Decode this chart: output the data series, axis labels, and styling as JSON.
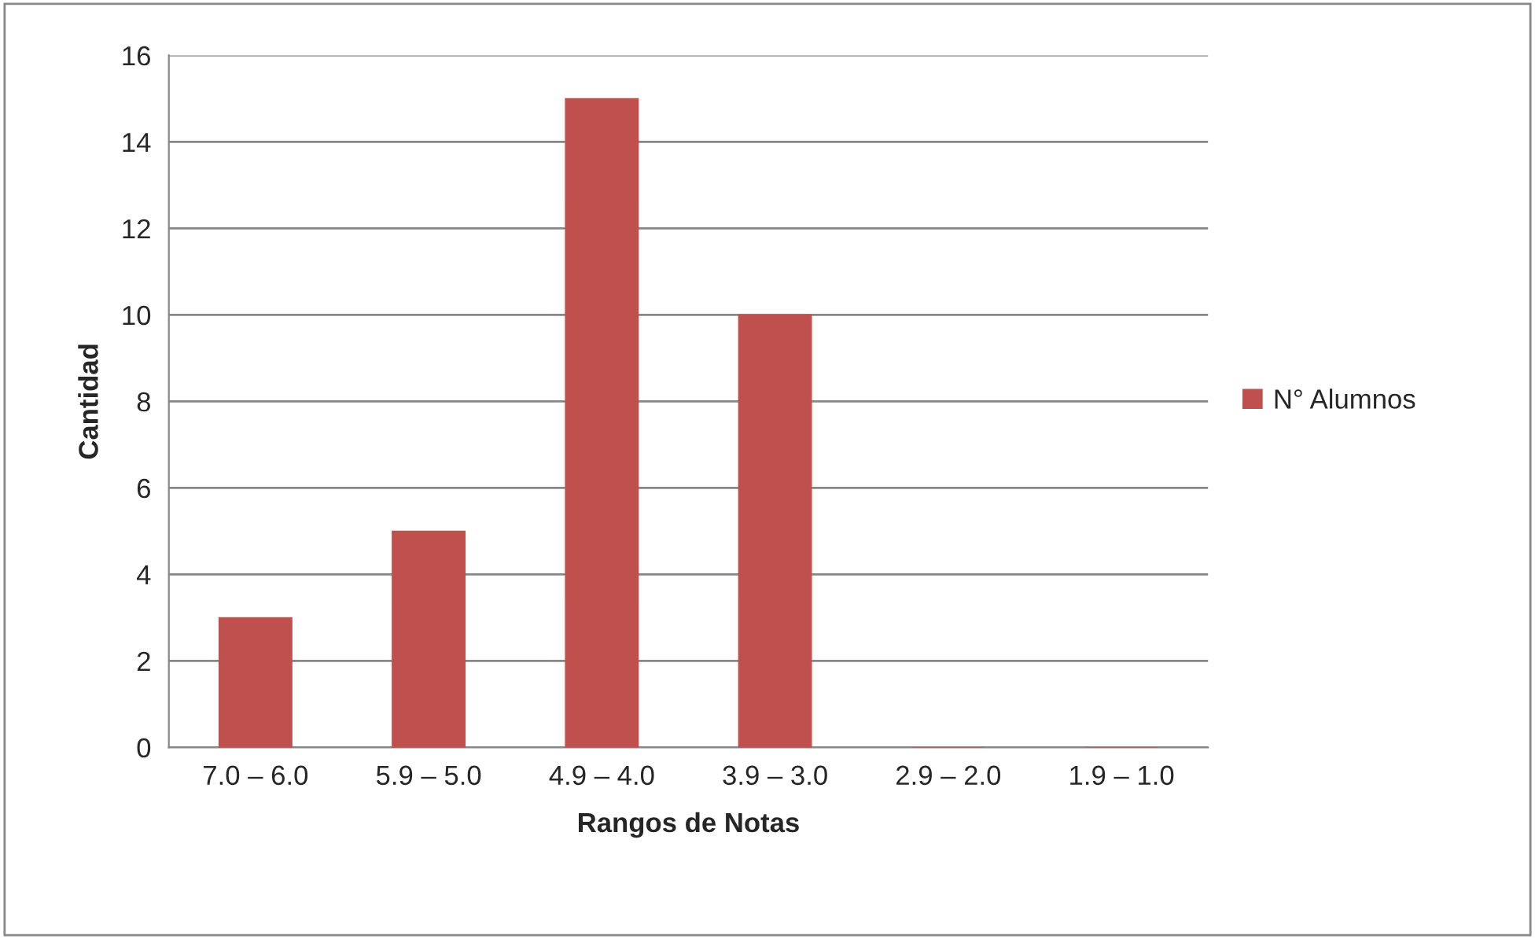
{
  "chart_data": {
    "type": "bar",
    "xlabel": "Rangos de Notas",
    "ylabel": "Cantidad",
    "categories": [
      "7.0 – 6.0",
      "5.9 – 5.0",
      "4.9 – 4.0",
      "3.9 – 3.0",
      "2.9 – 2.0",
      "1.9 – 1.0"
    ],
    "series": [
      {
        "name": "N° Alumnos",
        "color": "#c0504d",
        "values": [
          3,
          5,
          15,
          10,
          0,
          0
        ]
      }
    ],
    "ylim": [
      0,
      16
    ],
    "yticks": [
      0,
      2,
      4,
      6,
      8,
      10,
      12,
      14,
      16
    ],
    "grid": "y",
    "legend": "right"
  }
}
